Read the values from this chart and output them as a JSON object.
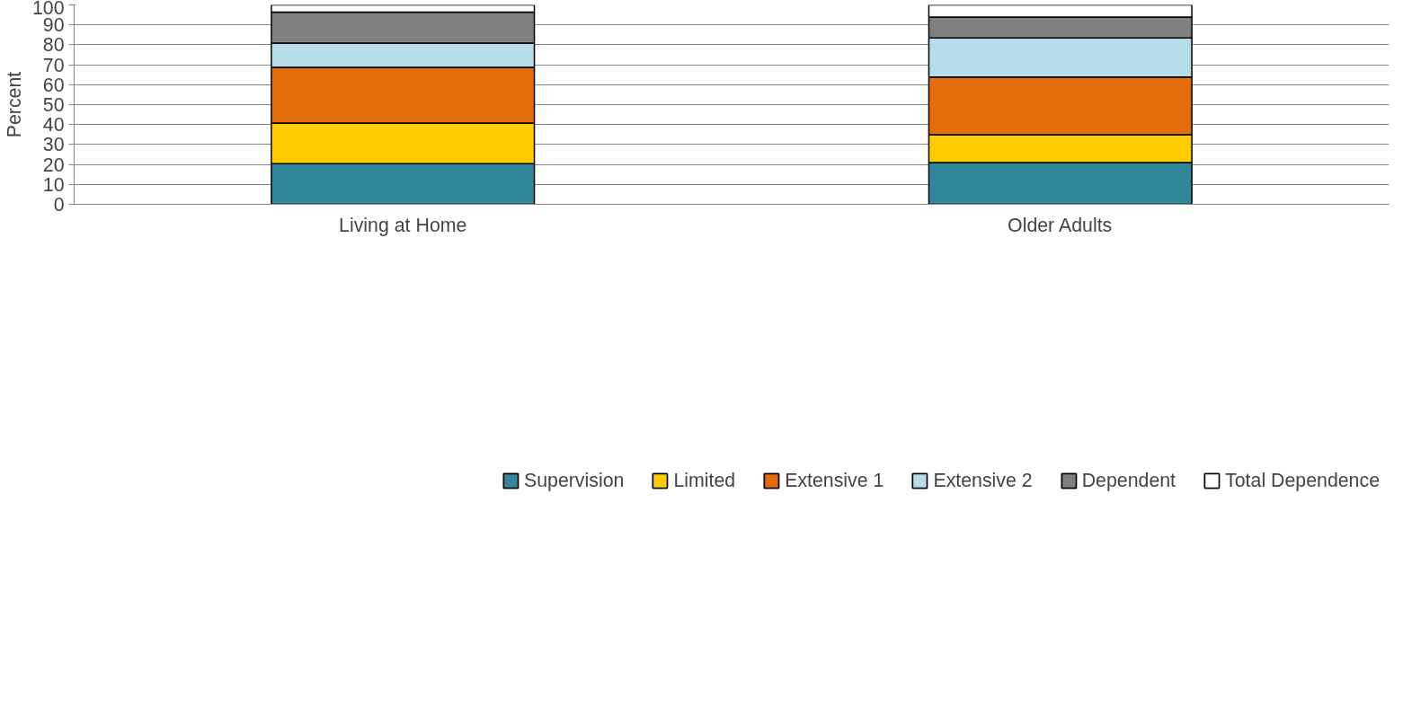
{
  "chart_data": {
    "type": "bar",
    "stacked": true,
    "ylabel": "Percent",
    "categories": [
      "Living at Home",
      "Older Adults"
    ],
    "series": [
      {
        "name": "Supervision",
        "color": "#31869b",
        "values": [
          20.4,
          21.0
        ]
      },
      {
        "name": "Limited",
        "color": "#ffcc00",
        "values": [
          20.4,
          13.9
        ]
      },
      {
        "name": "Extensive 1",
        "color": "#e46c0a",
        "values": [
          27.9,
          28.9
        ]
      },
      {
        "name": "Extensive 2",
        "color": "#b7dde8",
        "values": [
          12.1,
          19.6
        ]
      },
      {
        "name": "Dependent",
        "color": "#7f7f7f",
        "values": [
          15.6,
          10.5
        ]
      },
      {
        "name": "Total Dependence",
        "color": "#ffffff",
        "values": [
          3.6,
          6.1
        ]
      }
    ],
    "ylim": [
      0,
      100
    ],
    "yticks": [
      0,
      10,
      20,
      30,
      40,
      50,
      60,
      70,
      80,
      90,
      100
    ],
    "grid": "y",
    "legend": "bottom"
  }
}
